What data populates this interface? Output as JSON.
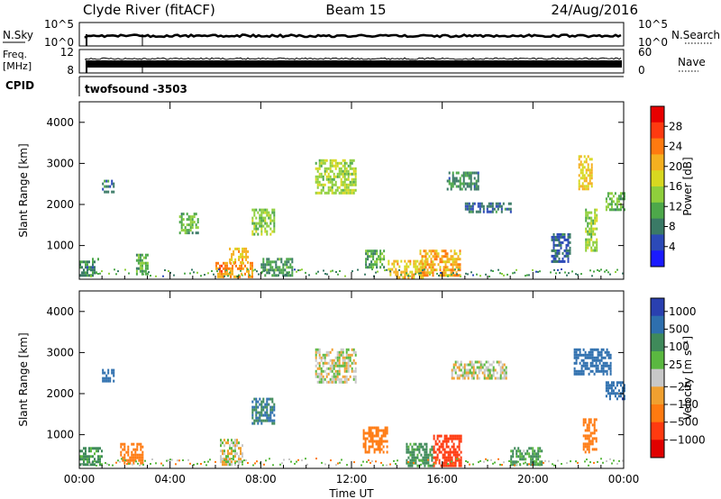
{
  "header": {
    "station": "Clyde River (fitACF)",
    "beam": "Beam 15",
    "date": "24/Aug/2016"
  },
  "top_panels": {
    "nsky_label": "N.Sky",
    "nsky_ticks": [
      "10^5",
      "10^0"
    ],
    "nsearch_label": "N.Search",
    "nsearch_ticks": [
      "10^5",
      "10^0"
    ],
    "freq_label": "Freq.",
    "freq_unit": "[MHz]",
    "freq_ticks": [
      "12",
      "8"
    ],
    "nave_label": "Nave",
    "nave_ticks": [
      "60",
      "0"
    ],
    "cpid_label": "CPID",
    "cpid_value": "twofsound  -3503"
  },
  "chart_data": [
    {
      "type": "heatmap",
      "quantity": "Power",
      "xlabel": "",
      "ylabel": "Slant Range [km]",
      "colorbar_label": "Power [dB]",
      "x_ticks": [
        "00:00",
        "04:00",
        "08:00",
        "12:00",
        "16:00",
        "20:00",
        "00:00"
      ],
      "xlim_hours": [
        0,
        24
      ],
      "ylim_km": [
        180,
        4500
      ],
      "y_ticks": [
        1000,
        2000,
        3000,
        4000
      ],
      "colorbar_range": [
        0,
        32
      ],
      "colorbar_ticks": [
        "4",
        "8",
        "12",
        "16",
        "20",
        "24",
        "28"
      ],
      "colorbar_colors": [
        "#1a1aff",
        "#2c4ab8",
        "#3a7a66",
        "#4da84a",
        "#8fcf3c",
        "#d8d820",
        "#f5b020",
        "#ff7a10",
        "#ff3a10",
        "#e80000"
      ],
      "regions": [
        {
          "t": [
            0.0,
            0.8
          ],
          "r": [
            250,
            700
          ],
          "v": 9
        },
        {
          "t": [
            1.0,
            1.5
          ],
          "r": [
            2300,
            2600
          ],
          "v": 8
        },
        {
          "t": [
            2.5,
            3.0
          ],
          "r": [
            300,
            800
          ],
          "v": 11
        },
        {
          "t": [
            4.4,
            5.2
          ],
          "r": [
            1300,
            1800
          ],
          "v": 12
        },
        {
          "t": [
            6.0,
            7.6
          ],
          "r": [
            250,
            600
          ],
          "v": 23
        },
        {
          "t": [
            6.6,
            7.4
          ],
          "r": [
            600,
            950
          ],
          "v": 20
        },
        {
          "t": [
            7.6,
            8.6
          ],
          "r": [
            1300,
            1900
          ],
          "v": 14
        },
        {
          "t": [
            8.0,
            9.4
          ],
          "r": [
            250,
            700
          ],
          "v": 10
        },
        {
          "t": [
            10.4,
            12.2
          ],
          "r": [
            2300,
            3100
          ],
          "v": 15
        },
        {
          "t": [
            12.6,
            13.4
          ],
          "r": [
            500,
            900
          ],
          "v": 11
        },
        {
          "t": [
            13.6,
            15.2
          ],
          "r": [
            250,
            650
          ],
          "v": 20
        },
        {
          "t": [
            15.0,
            16.8
          ],
          "r": [
            300,
            900
          ],
          "v": 21
        },
        {
          "t": [
            16.2,
            17.6
          ],
          "r": [
            2400,
            2800
          ],
          "v": 9
        },
        {
          "t": [
            17.0,
            19.0
          ],
          "r": [
            1800,
            2050
          ],
          "v": 7
        },
        {
          "t": [
            20.8,
            21.6
          ],
          "r": [
            600,
            1300
          ],
          "v": 7
        },
        {
          "t": [
            22.0,
            22.6
          ],
          "r": [
            2400,
            3200
          ],
          "v": 19
        },
        {
          "t": [
            22.3,
            22.8
          ],
          "r": [
            900,
            1900
          ],
          "v": 15
        },
        {
          "t": [
            23.2,
            24.0
          ],
          "r": [
            1900,
            2300
          ],
          "v": 12
        }
      ]
    },
    {
      "type": "heatmap",
      "quantity": "Velocity",
      "xlabel": "Time UT",
      "ylabel": "Slant Range [km]",
      "colorbar_label": "Velocity [m s⁻¹]",
      "x_ticks": [
        "00:00",
        "04:00",
        "08:00",
        "12:00",
        "16:00",
        "20:00",
        "00:00"
      ],
      "xlim_hours": [
        0,
        24
      ],
      "ylim_km": [
        180,
        4500
      ],
      "y_ticks": [
        1000,
        2000,
        3000,
        4000
      ],
      "colorbar_ticks": [
        "1000",
        "500",
        "100",
        "25",
        "−25",
        "−100",
        "−500",
        "−1000"
      ],
      "colorbar_colors": [
        "#2a40b0",
        "#2e6fae",
        "#3f8a5a",
        "#5ab840",
        "#c8c8c8",
        "#f0a030",
        "#ff7a10",
        "#ff3a10",
        "#e00000"
      ],
      "regions": [
        {
          "t": [
            0.0,
            1.0
          ],
          "r": [
            250,
            700
          ],
          "v": 100
        },
        {
          "t": [
            1.8,
            2.8
          ],
          "r": [
            300,
            800
          ],
          "v": -200
        },
        {
          "t": [
            1.0,
            1.5
          ],
          "r": [
            2300,
            2600
          ],
          "v": 400
        },
        {
          "t": [
            6.2,
            7.2
          ],
          "r": [
            300,
            900
          ],
          "v": 0
        },
        {
          "t": [
            7.6,
            8.6
          ],
          "r": [
            1300,
            1900
          ],
          "v": 300
        },
        {
          "t": [
            10.4,
            12.2
          ],
          "r": [
            2300,
            3100
          ],
          "v": 0
        },
        {
          "t": [
            12.5,
            13.6
          ],
          "r": [
            600,
            1200
          ],
          "v": -200
        },
        {
          "t": [
            14.4,
            15.6
          ],
          "r": [
            250,
            800
          ],
          "v": 100
        },
        {
          "t": [
            15.6,
            16.8
          ],
          "r": [
            250,
            1000
          ],
          "v": -400
        },
        {
          "t": [
            16.4,
            18.8
          ],
          "r": [
            2400,
            2800
          ],
          "v": 0
        },
        {
          "t": [
            19.0,
            20.4
          ],
          "r": [
            300,
            700
          ],
          "v": 80
        },
        {
          "t": [
            21.8,
            23.4
          ],
          "r": [
            2500,
            3100
          ],
          "v": 500
        },
        {
          "t": [
            22.2,
            22.8
          ],
          "r": [
            600,
            1400
          ],
          "v": -200
        },
        {
          "t": [
            23.2,
            24.0
          ],
          "r": [
            1900,
            2300
          ],
          "v": 700
        }
      ]
    }
  ]
}
